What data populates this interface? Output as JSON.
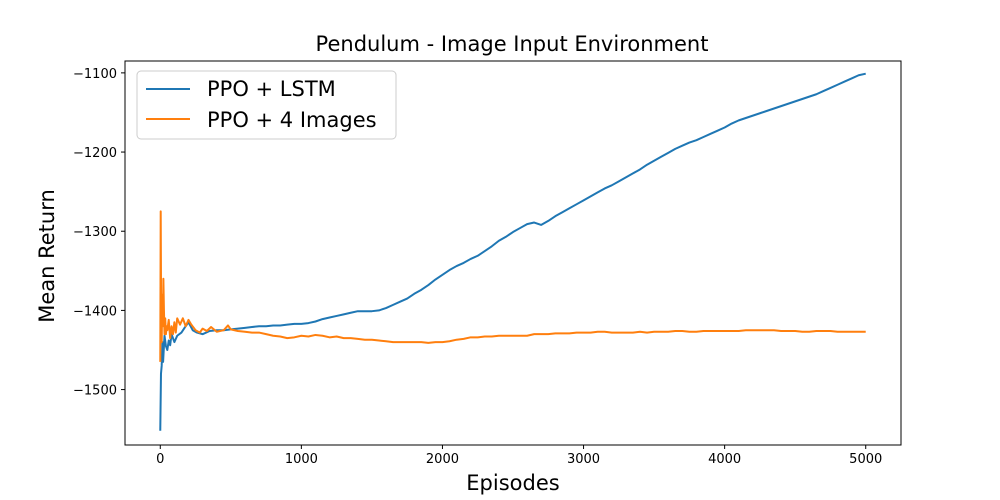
{
  "chart_data": {
    "type": "line",
    "title": "Pendulum - Image Input Environment",
    "xlabel": "Episodes",
    "ylabel": "Mean Return",
    "xlim": [
      -250,
      5250
    ],
    "ylim": [
      -1570,
      -1085
    ],
    "xticks": [
      0,
      1000,
      2000,
      3000,
      4000,
      5000
    ],
    "yticks": [
      -1500,
      -1400,
      -1300,
      -1200,
      -1100
    ],
    "x_tick_labels": [
      "0",
      "1000",
      "2000",
      "3000",
      "4000",
      "5000"
    ],
    "y_tick_labels": [
      "−1500",
      "−1400",
      "−1300",
      "−1200",
      "−1100"
    ],
    "grid": false,
    "legend_position": "top-left",
    "series": [
      {
        "name": "PPO + LSTM",
        "color": "#1f77b4",
        "points": [
          [
            0,
            -1552
          ],
          [
            5,
            -1480
          ],
          [
            10,
            -1470
          ],
          [
            15,
            -1440
          ],
          [
            20,
            -1465
          ],
          [
            30,
            -1432
          ],
          [
            40,
            -1445
          ],
          [
            50,
            -1450
          ],
          [
            60,
            -1438
          ],
          [
            70,
            -1444
          ],
          [
            80,
            -1430
          ],
          [
            100,
            -1440
          ],
          [
            120,
            -1432
          ],
          [
            150,
            -1428
          ],
          [
            180,
            -1420
          ],
          [
            200,
            -1415
          ],
          [
            230,
            -1425
          ],
          [
            260,
            -1428
          ],
          [
            300,
            -1430
          ],
          [
            350,
            -1426
          ],
          [
            400,
            -1425
          ],
          [
            450,
            -1425
          ],
          [
            500,
            -1424
          ],
          [
            550,
            -1423
          ],
          [
            600,
            -1422
          ],
          [
            650,
            -1421
          ],
          [
            700,
            -1420
          ],
          [
            750,
            -1420
          ],
          [
            800,
            -1419
          ],
          [
            850,
            -1419
          ],
          [
            900,
            -1418
          ],
          [
            950,
            -1417
          ],
          [
            1000,
            -1417
          ],
          [
            1050,
            -1416
          ],
          [
            1100,
            -1414
          ],
          [
            1150,
            -1411
          ],
          [
            1200,
            -1409
          ],
          [
            1250,
            -1407
          ],
          [
            1300,
            -1405
          ],
          [
            1350,
            -1403
          ],
          [
            1400,
            -1401
          ],
          [
            1450,
            -1401
          ],
          [
            1500,
            -1401
          ],
          [
            1550,
            -1400
          ],
          [
            1600,
            -1397
          ],
          [
            1650,
            -1393
          ],
          [
            1700,
            -1389
          ],
          [
            1750,
            -1385
          ],
          [
            1800,
            -1379
          ],
          [
            1850,
            -1374
          ],
          [
            1900,
            -1368
          ],
          [
            1950,
            -1361
          ],
          [
            2000,
            -1355
          ],
          [
            2050,
            -1349
          ],
          [
            2100,
            -1344
          ],
          [
            2150,
            -1340
          ],
          [
            2200,
            -1335
          ],
          [
            2250,
            -1331
          ],
          [
            2300,
            -1325
          ],
          [
            2350,
            -1319
          ],
          [
            2400,
            -1312
          ],
          [
            2450,
            -1307
          ],
          [
            2500,
            -1301
          ],
          [
            2550,
            -1296
          ],
          [
            2600,
            -1291
          ],
          [
            2650,
            -1289
          ],
          [
            2700,
            -1292
          ],
          [
            2750,
            -1287
          ],
          [
            2800,
            -1281
          ],
          [
            2850,
            -1276
          ],
          [
            2900,
            -1271
          ],
          [
            2950,
            -1266
          ],
          [
            3000,
            -1261
          ],
          [
            3050,
            -1256
          ],
          [
            3100,
            -1251
          ],
          [
            3150,
            -1246
          ],
          [
            3200,
            -1242
          ],
          [
            3250,
            -1237
          ],
          [
            3300,
            -1232
          ],
          [
            3350,
            -1227
          ],
          [
            3400,
            -1222
          ],
          [
            3450,
            -1216
          ],
          [
            3500,
            -1211
          ],
          [
            3550,
            -1206
          ],
          [
            3600,
            -1201
          ],
          [
            3650,
            -1196
          ],
          [
            3700,
            -1192
          ],
          [
            3750,
            -1188
          ],
          [
            3800,
            -1185
          ],
          [
            3850,
            -1181
          ],
          [
            3900,
            -1177
          ],
          [
            3950,
            -1173
          ],
          [
            4000,
            -1169
          ],
          [
            4050,
            -1164
          ],
          [
            4100,
            -1160
          ],
          [
            4150,
            -1157
          ],
          [
            4200,
            -1154
          ],
          [
            4250,
            -1151
          ],
          [
            4300,
            -1148
          ],
          [
            4350,
            -1145
          ],
          [
            4400,
            -1142
          ],
          [
            4450,
            -1139
          ],
          [
            4500,
            -1136
          ],
          [
            4550,
            -1133
          ],
          [
            4600,
            -1130
          ],
          [
            4650,
            -1127
          ],
          [
            4700,
            -1123
          ],
          [
            4750,
            -1119
          ],
          [
            4800,
            -1115
          ],
          [
            4850,
            -1111
          ],
          [
            4900,
            -1107
          ],
          [
            4950,
            -1103
          ],
          [
            5000,
            -1101
          ]
        ]
      },
      {
        "name": "PPO + 4 Images",
        "color": "#ff7f0e",
        "points": [
          [
            0,
            -1465
          ],
          [
            3,
            -1275
          ],
          [
            6,
            -1400
          ],
          [
            10,
            -1440
          ],
          [
            14,
            -1380
          ],
          [
            18,
            -1420
          ],
          [
            22,
            -1360
          ],
          [
            26,
            -1400
          ],
          [
            30,
            -1430
          ],
          [
            35,
            -1410
          ],
          [
            40,
            -1430
          ],
          [
            45,
            -1420
          ],
          [
            50,
            -1425
          ],
          [
            60,
            -1412
          ],
          [
            70,
            -1435
          ],
          [
            80,
            -1420
          ],
          [
            90,
            -1430
          ],
          [
            100,
            -1415
          ],
          [
            110,
            -1428
          ],
          [
            120,
            -1410
          ],
          [
            140,
            -1418
          ],
          [
            160,
            -1410
          ],
          [
            180,
            -1420
          ],
          [
            200,
            -1412
          ],
          [
            220,
            -1418
          ],
          [
            250,
            -1425
          ],
          [
            280,
            -1428
          ],
          [
            300,
            -1423
          ],
          [
            330,
            -1426
          ],
          [
            360,
            -1421
          ],
          [
            400,
            -1427
          ],
          [
            450,
            -1425
          ],
          [
            480,
            -1419
          ],
          [
            500,
            -1424
          ],
          [
            550,
            -1426
          ],
          [
            600,
            -1427
          ],
          [
            650,
            -1428
          ],
          [
            700,
            -1428
          ],
          [
            750,
            -1430
          ],
          [
            800,
            -1432
          ],
          [
            850,
            -1433
          ],
          [
            900,
            -1435
          ],
          [
            950,
            -1434
          ],
          [
            1000,
            -1432
          ],
          [
            1050,
            -1433
          ],
          [
            1100,
            -1431
          ],
          [
            1150,
            -1432
          ],
          [
            1200,
            -1434
          ],
          [
            1250,
            -1433
          ],
          [
            1300,
            -1435
          ],
          [
            1350,
            -1435
          ],
          [
            1400,
            -1436
          ],
          [
            1450,
            -1437
          ],
          [
            1500,
            -1437
          ],
          [
            1550,
            -1438
          ],
          [
            1600,
            -1439
          ],
          [
            1650,
            -1440
          ],
          [
            1700,
            -1440
          ],
          [
            1750,
            -1440
          ],
          [
            1800,
            -1440
          ],
          [
            1850,
            -1440
          ],
          [
            1900,
            -1441
          ],
          [
            1950,
            -1440
          ],
          [
            2000,
            -1440
          ],
          [
            2050,
            -1439
          ],
          [
            2100,
            -1437
          ],
          [
            2150,
            -1436
          ],
          [
            2200,
            -1434
          ],
          [
            2250,
            -1434
          ],
          [
            2300,
            -1433
          ],
          [
            2350,
            -1433
          ],
          [
            2400,
            -1432
          ],
          [
            2450,
            -1432
          ],
          [
            2500,
            -1432
          ],
          [
            2550,
            -1432
          ],
          [
            2600,
            -1432
          ],
          [
            2650,
            -1430
          ],
          [
            2700,
            -1430
          ],
          [
            2750,
            -1430
          ],
          [
            2800,
            -1429
          ],
          [
            2850,
            -1429
          ],
          [
            2900,
            -1429
          ],
          [
            2950,
            -1428
          ],
          [
            3000,
            -1428
          ],
          [
            3050,
            -1428
          ],
          [
            3100,
            -1427
          ],
          [
            3150,
            -1427
          ],
          [
            3200,
            -1428
          ],
          [
            3250,
            -1428
          ],
          [
            3300,
            -1428
          ],
          [
            3350,
            -1428
          ],
          [
            3400,
            -1427
          ],
          [
            3450,
            -1428
          ],
          [
            3500,
            -1427
          ],
          [
            3550,
            -1427
          ],
          [
            3600,
            -1427
          ],
          [
            3650,
            -1426
          ],
          [
            3700,
            -1426
          ],
          [
            3750,
            -1427
          ],
          [
            3800,
            -1427
          ],
          [
            3850,
            -1426
          ],
          [
            3900,
            -1426
          ],
          [
            3950,
            -1426
          ],
          [
            4000,
            -1426
          ],
          [
            4050,
            -1426
          ],
          [
            4100,
            -1426
          ],
          [
            4150,
            -1425
          ],
          [
            4200,
            -1425
          ],
          [
            4250,
            -1425
          ],
          [
            4300,
            -1425
          ],
          [
            4350,
            -1425
          ],
          [
            4400,
            -1426
          ],
          [
            4450,
            -1426
          ],
          [
            4500,
            -1426
          ],
          [
            4550,
            -1427
          ],
          [
            4600,
            -1427
          ],
          [
            4650,
            -1426
          ],
          [
            4700,
            -1426
          ],
          [
            4750,
            -1426
          ],
          [
            4800,
            -1427
          ],
          [
            4850,
            -1427
          ],
          [
            4900,
            -1427
          ],
          [
            4950,
            -1427
          ],
          [
            5000,
            -1427
          ]
        ]
      }
    ]
  }
}
